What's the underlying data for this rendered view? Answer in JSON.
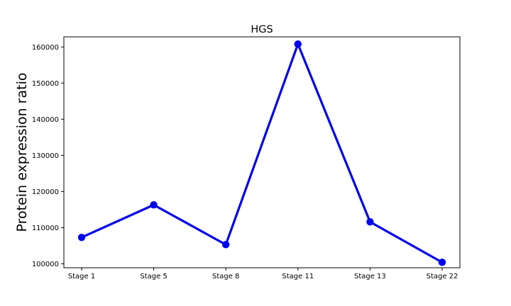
{
  "chart_data": {
    "type": "line",
    "title": "HGS",
    "xlabel": "",
    "ylabel": "Protein expression ratio",
    "categories": [
      "Stage 1",
      "Stage 5",
      "Stage 8",
      "Stage 11",
      "Stage 13",
      "Stage 22"
    ],
    "series": [
      {
        "values": [
          107300,
          116300,
          105300,
          160800,
          111600,
          100400
        ]
      }
    ],
    "ylim": [
      98900,
      162800
    ],
    "yticks": [
      100000,
      110000,
      120000,
      130000,
      140000,
      150000,
      160000
    ],
    "ytick_labels": [
      "100000",
      "110000",
      "120000",
      "130000",
      "140000",
      "150000",
      "160000"
    ],
    "grid": false,
    "legend": "none",
    "colors": {
      "line": "#0000ee",
      "axes": "#000000",
      "background": "#ffffff"
    }
  }
}
